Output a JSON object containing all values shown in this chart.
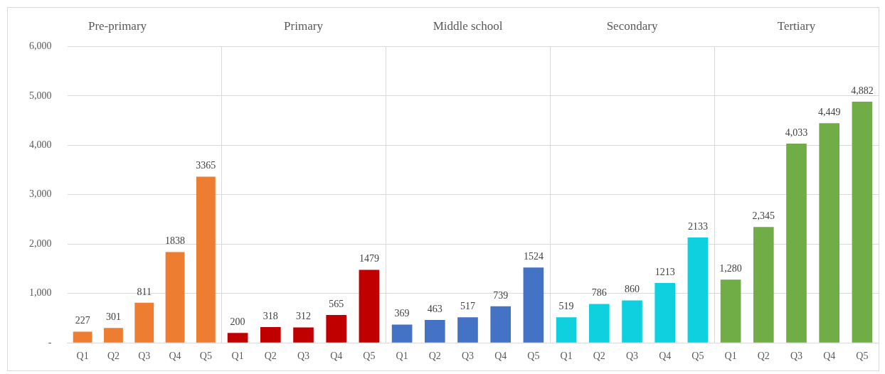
{
  "chart_data": [
    {
      "type": "bar",
      "title": "Pre-primary",
      "categories": [
        "Q1",
        "Q2",
        "Q3",
        "Q4",
        "Q5"
      ],
      "values": [
        227,
        301,
        811,
        1838,
        3365
      ],
      "color": "#ed7d31",
      "value_labels": [
        "227",
        "301",
        "811",
        "1838",
        "3365"
      ],
      "ylim": [
        0,
        6000
      ],
      "yticks": [
        {
          "value": 0,
          "label": "-"
        },
        {
          "value": 1000,
          "label": "1,000"
        },
        {
          "value": 2000,
          "label": "2,000"
        },
        {
          "value": 3000,
          "label": "3,000"
        },
        {
          "value": 4000,
          "label": "4,000"
        },
        {
          "value": 5000,
          "label": "5,000"
        },
        {
          "value": 6000,
          "label": "6,000"
        }
      ],
      "grid": "y"
    },
    {
      "type": "bar",
      "title": "Primary",
      "categories": [
        "Q1",
        "Q2",
        "Q3",
        "Q4",
        "Q5"
      ],
      "values": [
        200,
        318,
        312,
        565,
        1479
      ],
      "color": "#c00000",
      "value_labels": [
        "200",
        "318",
        "312",
        "565",
        "1479"
      ],
      "ylim": [
        0,
        6000
      ],
      "yticks": [
        0,
        1000,
        2000,
        3000,
        4000,
        5000,
        6000
      ],
      "grid": "y",
      "tick_labels": "x"
    },
    {
      "type": "bar",
      "title": "Middle school",
      "categories": [
        "Q1",
        "Q2",
        "Q3",
        "Q4",
        "Q5"
      ],
      "values": [
        369,
        463,
        517,
        739,
        1524
      ],
      "color": "#4472c4",
      "value_labels": [
        "369",
        "463",
        "517",
        "739",
        "1524"
      ],
      "ylim": [
        0,
        6000
      ],
      "yticks": [
        0,
        1000,
        2000,
        3000,
        4000,
        5000,
        6000
      ],
      "grid": "y",
      "tick_labels": "x"
    },
    {
      "type": "bar",
      "title": "Secondary",
      "categories": [
        "Q1",
        "Q2",
        "Q3",
        "Q4",
        "Q5"
      ],
      "values": [
        519,
        786,
        860,
        1213,
        2133
      ],
      "color": "#0fd0de",
      "value_labels": [
        "519",
        "786",
        "860",
        "1213",
        "2133"
      ],
      "ylim": [
        0,
        6000
      ],
      "yticks": [
        0,
        1000,
        2000,
        3000,
        4000,
        5000,
        6000
      ],
      "grid": "y",
      "tick_labels": "x"
    },
    {
      "type": "bar",
      "title": "Tertiary",
      "categories": [
        "Q1",
        "Q2",
        "Q3",
        "Q4",
        "Q5"
      ],
      "values": [
        1280,
        2345,
        4033,
        4449,
        4882
      ],
      "color": "#70ad47",
      "value_labels": [
        "1,280",
        "2,345",
        "4,033",
        "4,449",
        "4,882"
      ],
      "ylim": [
        0,
        6000
      ],
      "yticks": [
        0,
        1000,
        2000,
        3000,
        4000,
        5000,
        6000
      ],
      "grid": "y",
      "tick_labels": "x"
    }
  ]
}
